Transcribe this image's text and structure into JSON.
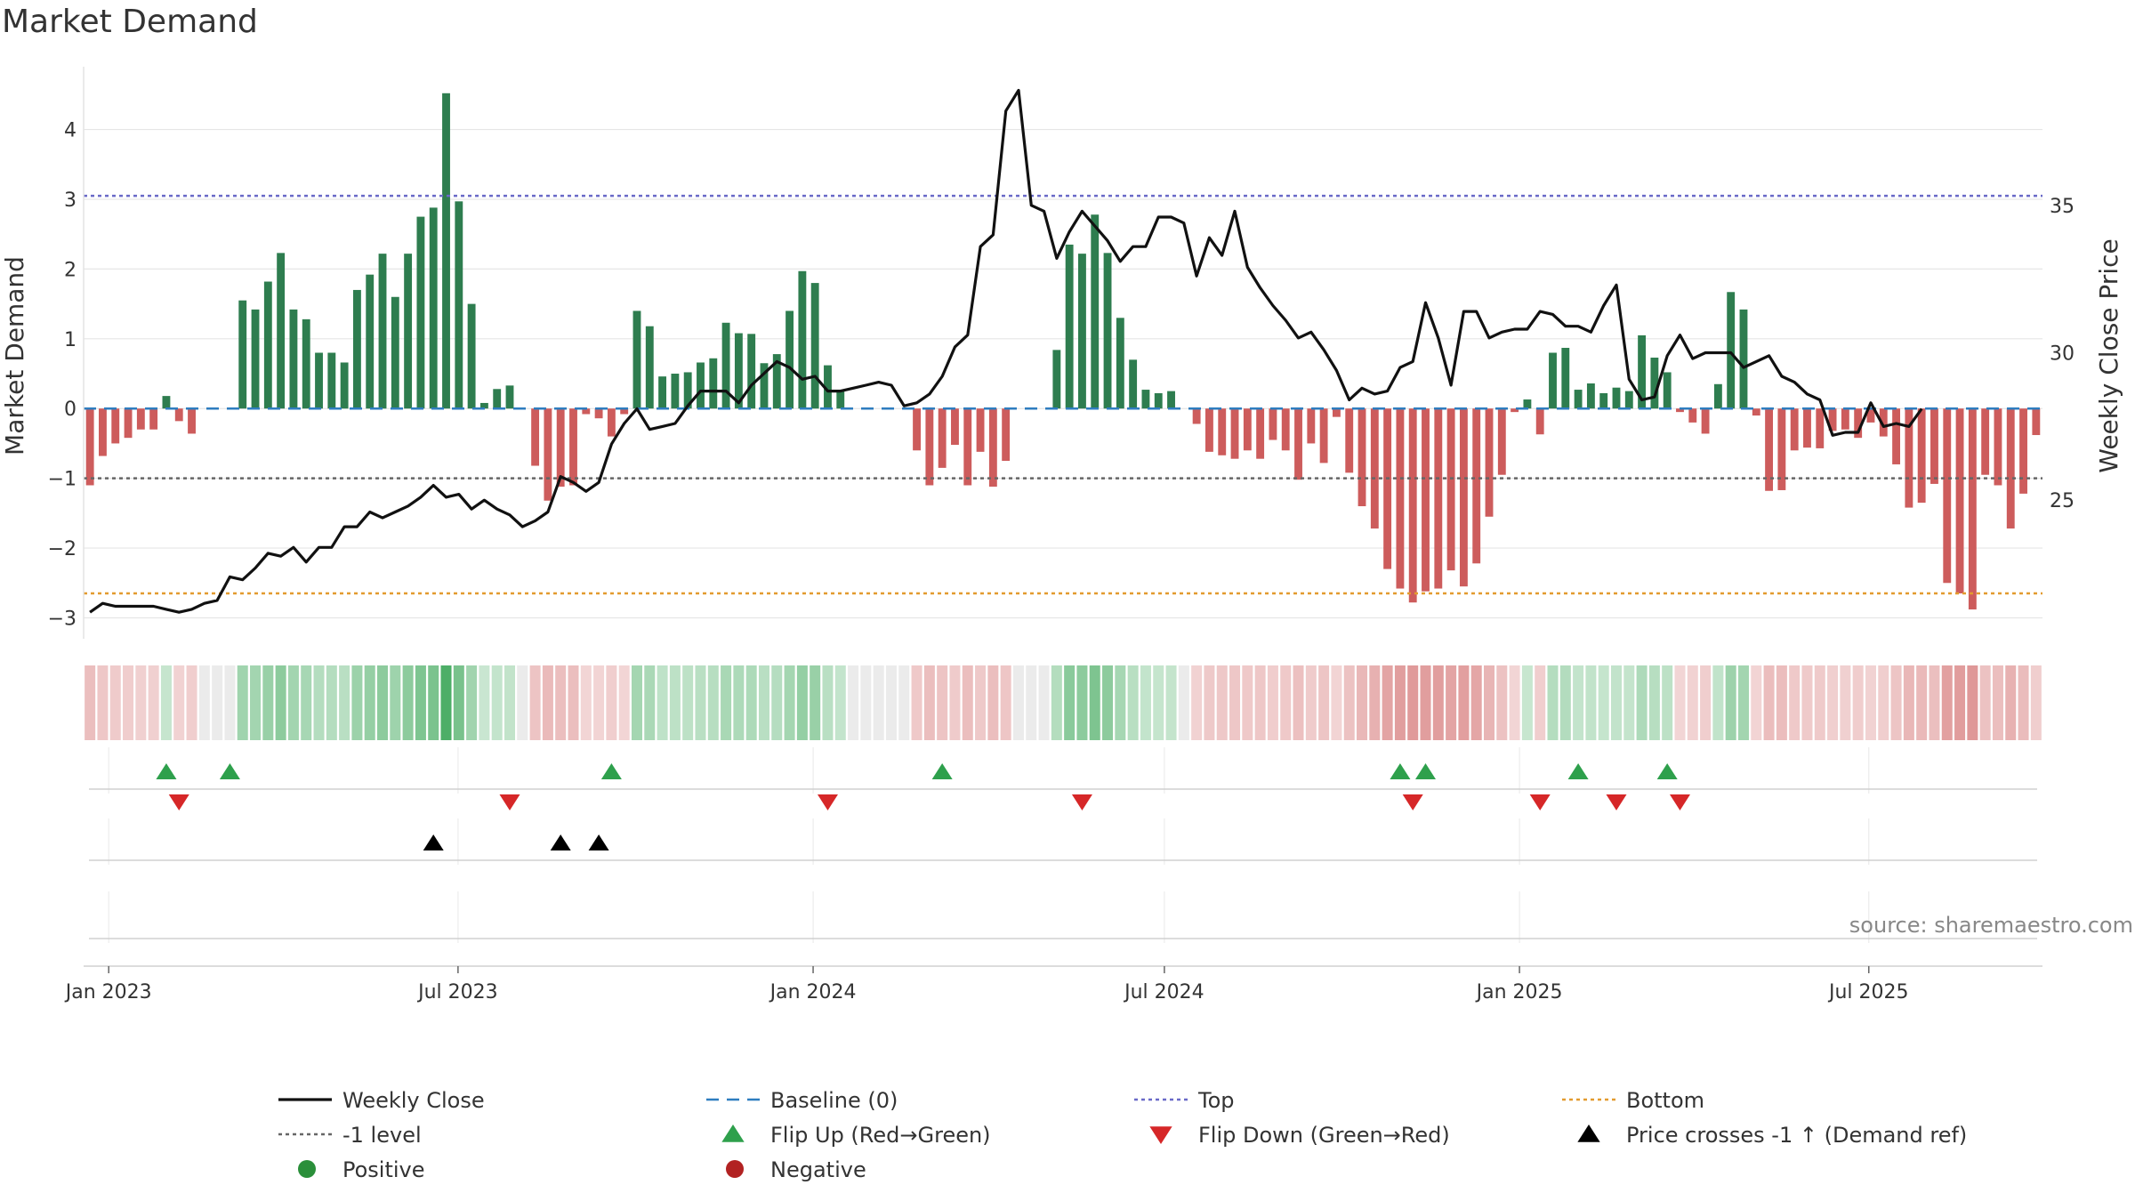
{
  "title": "Market Demand",
  "source": "source: sharemaestro.com",
  "chart_data": {
    "type": "bar",
    "title": "Market Demand",
    "ylabel": "Market Demand",
    "y2label": "Weekly Close Price",
    "ylim": [
      -3.3,
      4.9
    ],
    "y2lim": [
      20.3,
      39.7
    ],
    "yticks": [
      -3,
      -2,
      -1,
      0,
      1,
      2,
      3,
      4
    ],
    "yticks_labels": [
      "−3",
      "−2",
      "−1",
      "0",
      "1",
      "2",
      "3",
      "4"
    ],
    "y2ticks": [
      25,
      30,
      35
    ],
    "levels": {
      "top": 3.05,
      "bottom": -2.65,
      "minus_one": -1,
      "baseline": 0
    },
    "x_start": "2022-12-19",
    "x_end": "2025-09-29",
    "xticks": [
      {
        "date": "2023-01-01",
        "label": "Jan 2023"
      },
      {
        "date": "2023-07-01",
        "label": "Jul 2023"
      },
      {
        "date": "2024-01-01",
        "label": "Jan 2024"
      },
      {
        "date": "2024-07-01",
        "label": "Jul 2024"
      },
      {
        "date": "2025-01-01",
        "label": "Jan 2025"
      },
      {
        "date": "2025-07-01",
        "label": "Jul 2025"
      }
    ],
    "demand": [
      -1.1,
      -0.68,
      -0.5,
      -0.42,
      -0.3,
      -0.3,
      0.18,
      -0.18,
      -0.36,
      0,
      0,
      0,
      1.55,
      1.42,
      1.82,
      2.23,
      1.42,
      1.28,
      0.8,
      0.8,
      0.66,
      1.7,
      1.92,
      2.22,
      1.6,
      2.22,
      2.75,
      2.88,
      4.52,
      2.97,
      1.5,
      0.08,
      0.28,
      0.33,
      0,
      -0.82,
      -1.32,
      -1.12,
      -1.1,
      -0.08,
      -0.14,
      -0.4,
      -0.08,
      1.4,
      1.18,
      0.46,
      0.5,
      0.52,
      0.66,
      0.72,
      1.23,
      1.08,
      1.07,
      0.65,
      0.78,
      1.4,
      1.97,
      1.8,
      0.62,
      0.27,
      0,
      0,
      0,
      0,
      0,
      -0.6,
      -1.1,
      -0.85,
      -0.52,
      -1.1,
      -0.62,
      -1.12,
      -0.75,
      0,
      0,
      0,
      0.84,
      2.35,
      2.22,
      2.78,
      2.23,
      1.3,
      0.7,
      0.27,
      0.22,
      0.25,
      0,
      -0.22,
      -0.62,
      -0.67,
      -0.72,
      -0.6,
      -0.72,
      -0.45,
      -0.6,
      -1.02,
      -0.5,
      -0.78,
      -0.12,
      -0.92,
      -1.4,
      -1.72,
      -2.3,
      -2.58,
      -2.78,
      -2.62,
      -2.58,
      -2.32,
      -2.55,
      -2.22,
      -1.55,
      -0.95,
      -0.05,
      0.13,
      -0.37,
      0.8,
      0.87,
      0.27,
      0.36,
      0.22,
      0.3,
      0.25,
      1.05,
      0.73,
      0.52,
      -0.05,
      -0.2,
      -0.36,
      0.35,
      1.67,
      1.42,
      -0.1,
      -1.18,
      -1.17,
      -0.6,
      -0.56,
      -0.57,
      -0.32,
      -0.3,
      -0.42,
      -0.2,
      -0.4,
      -0.8,
      -1.42,
      -1.35,
      -1.08,
      -2.5,
      -2.65,
      -2.88,
      -0.95,
      -1.1,
      -1.72,
      -1.22,
      -0.38
    ],
    "price": [
      21.2,
      21.5,
      21.4,
      21.4,
      21.4,
      21.4,
      21.3,
      21.2,
      21.3,
      21.5,
      21.6,
      22.4,
      22.3,
      22.7,
      23.2,
      23.1,
      23.4,
      22.9,
      23.4,
      23.4,
      24.1,
      24.1,
      24.6,
      24.4,
      24.6,
      24.8,
      25.1,
      25.5,
      25.1,
      25.2,
      24.7,
      25.0,
      24.7,
      24.5,
      24.1,
      24.3,
      24.6,
      25.8,
      25.6,
      25.3,
      25.6,
      26.9,
      27.6,
      28.1,
      27.4,
      27.5,
      27.6,
      28.2,
      28.7,
      28.7,
      28.7,
      28.3,
      28.9,
      29.3,
      29.7,
      29.5,
      29.1,
      29.2,
      28.7,
      28.7,
      28.8,
      28.9,
      29.0,
      28.9,
      28.2,
      28.3,
      28.6,
      29.2,
      30.2,
      30.6,
      33.6,
      34.0,
      38.2,
      38.9,
      35.0,
      34.8,
      33.2,
      34.1,
      34.8,
      34.3,
      33.8,
      33.1,
      33.6,
      33.6,
      34.6,
      34.6,
      34.4,
      32.6,
      33.9,
      33.3,
      34.8,
      32.9,
      32.2,
      31.6,
      31.1,
      30.5,
      30.7,
      30.1,
      29.4,
      28.4,
      28.8,
      28.6,
      28.7,
      29.5,
      29.7,
      31.7,
      30.5,
      28.9,
      31.4,
      31.4,
      30.5,
      30.7,
      30.8,
      30.8,
      31.4,
      31.3,
      30.9,
      30.9,
      30.7,
      31.6,
      32.3,
      29.1,
      28.4,
      28.5,
      29.9,
      30.6,
      29.8,
      30.0,
      30.0,
      30.0,
      29.5,
      29.7,
      29.9,
      29.2,
      29.0,
      28.6,
      28.4,
      27.2,
      27.3,
      27.3,
      28.3,
      27.5,
      27.6,
      27.5,
      28.1
    ],
    "heat_strip": "per-week colour intensity mirrors demand sign and magnitude (green positive, red negative)",
    "flip_up_weeks": [
      6,
      11,
      41,
      67,
      103,
      105,
      117,
      124
    ],
    "flip_down_weeks": [
      7,
      33,
      58,
      78,
      104,
      114,
      120,
      125
    ],
    "price_cross_weeks": [
      27,
      37,
      40
    ],
    "legend": [
      {
        "label": "Weekly Close",
        "symbol": "line-solid",
        "color": "#111111"
      },
      {
        "label": "Baseline (0)",
        "symbol": "line-dashed",
        "color": "#2e7dbf"
      },
      {
        "label": "Top",
        "symbol": "line-dotted",
        "color": "#6a6ac8"
      },
      {
        "label": "Bottom",
        "symbol": "line-dotted",
        "color": "#e39b2f"
      },
      {
        "label": "-1 level",
        "symbol": "line-dotted",
        "color": "#666666"
      },
      {
        "label": "Flip Up (Red→Green)",
        "symbol": "triangle-up",
        "color": "#2ea04c"
      },
      {
        "label": "Flip Down (Green→Red)",
        "symbol": "triangle-down",
        "color": "#d62728"
      },
      {
        "label": "Price crosses -1 ↑ (Demand ref)",
        "symbol": "triangle-up",
        "color": "#000000"
      },
      {
        "label": "Positive",
        "symbol": "circle",
        "color": "#2a8f3a"
      },
      {
        "label": "Negative",
        "symbol": "circle",
        "color": "#b22222"
      }
    ],
    "colors": {
      "positive_bar": "#2e7d4f",
      "negative_bar": "#cd5c5c",
      "baseline": "#2e7dbf",
      "grid": "#e6e6e6"
    }
  }
}
